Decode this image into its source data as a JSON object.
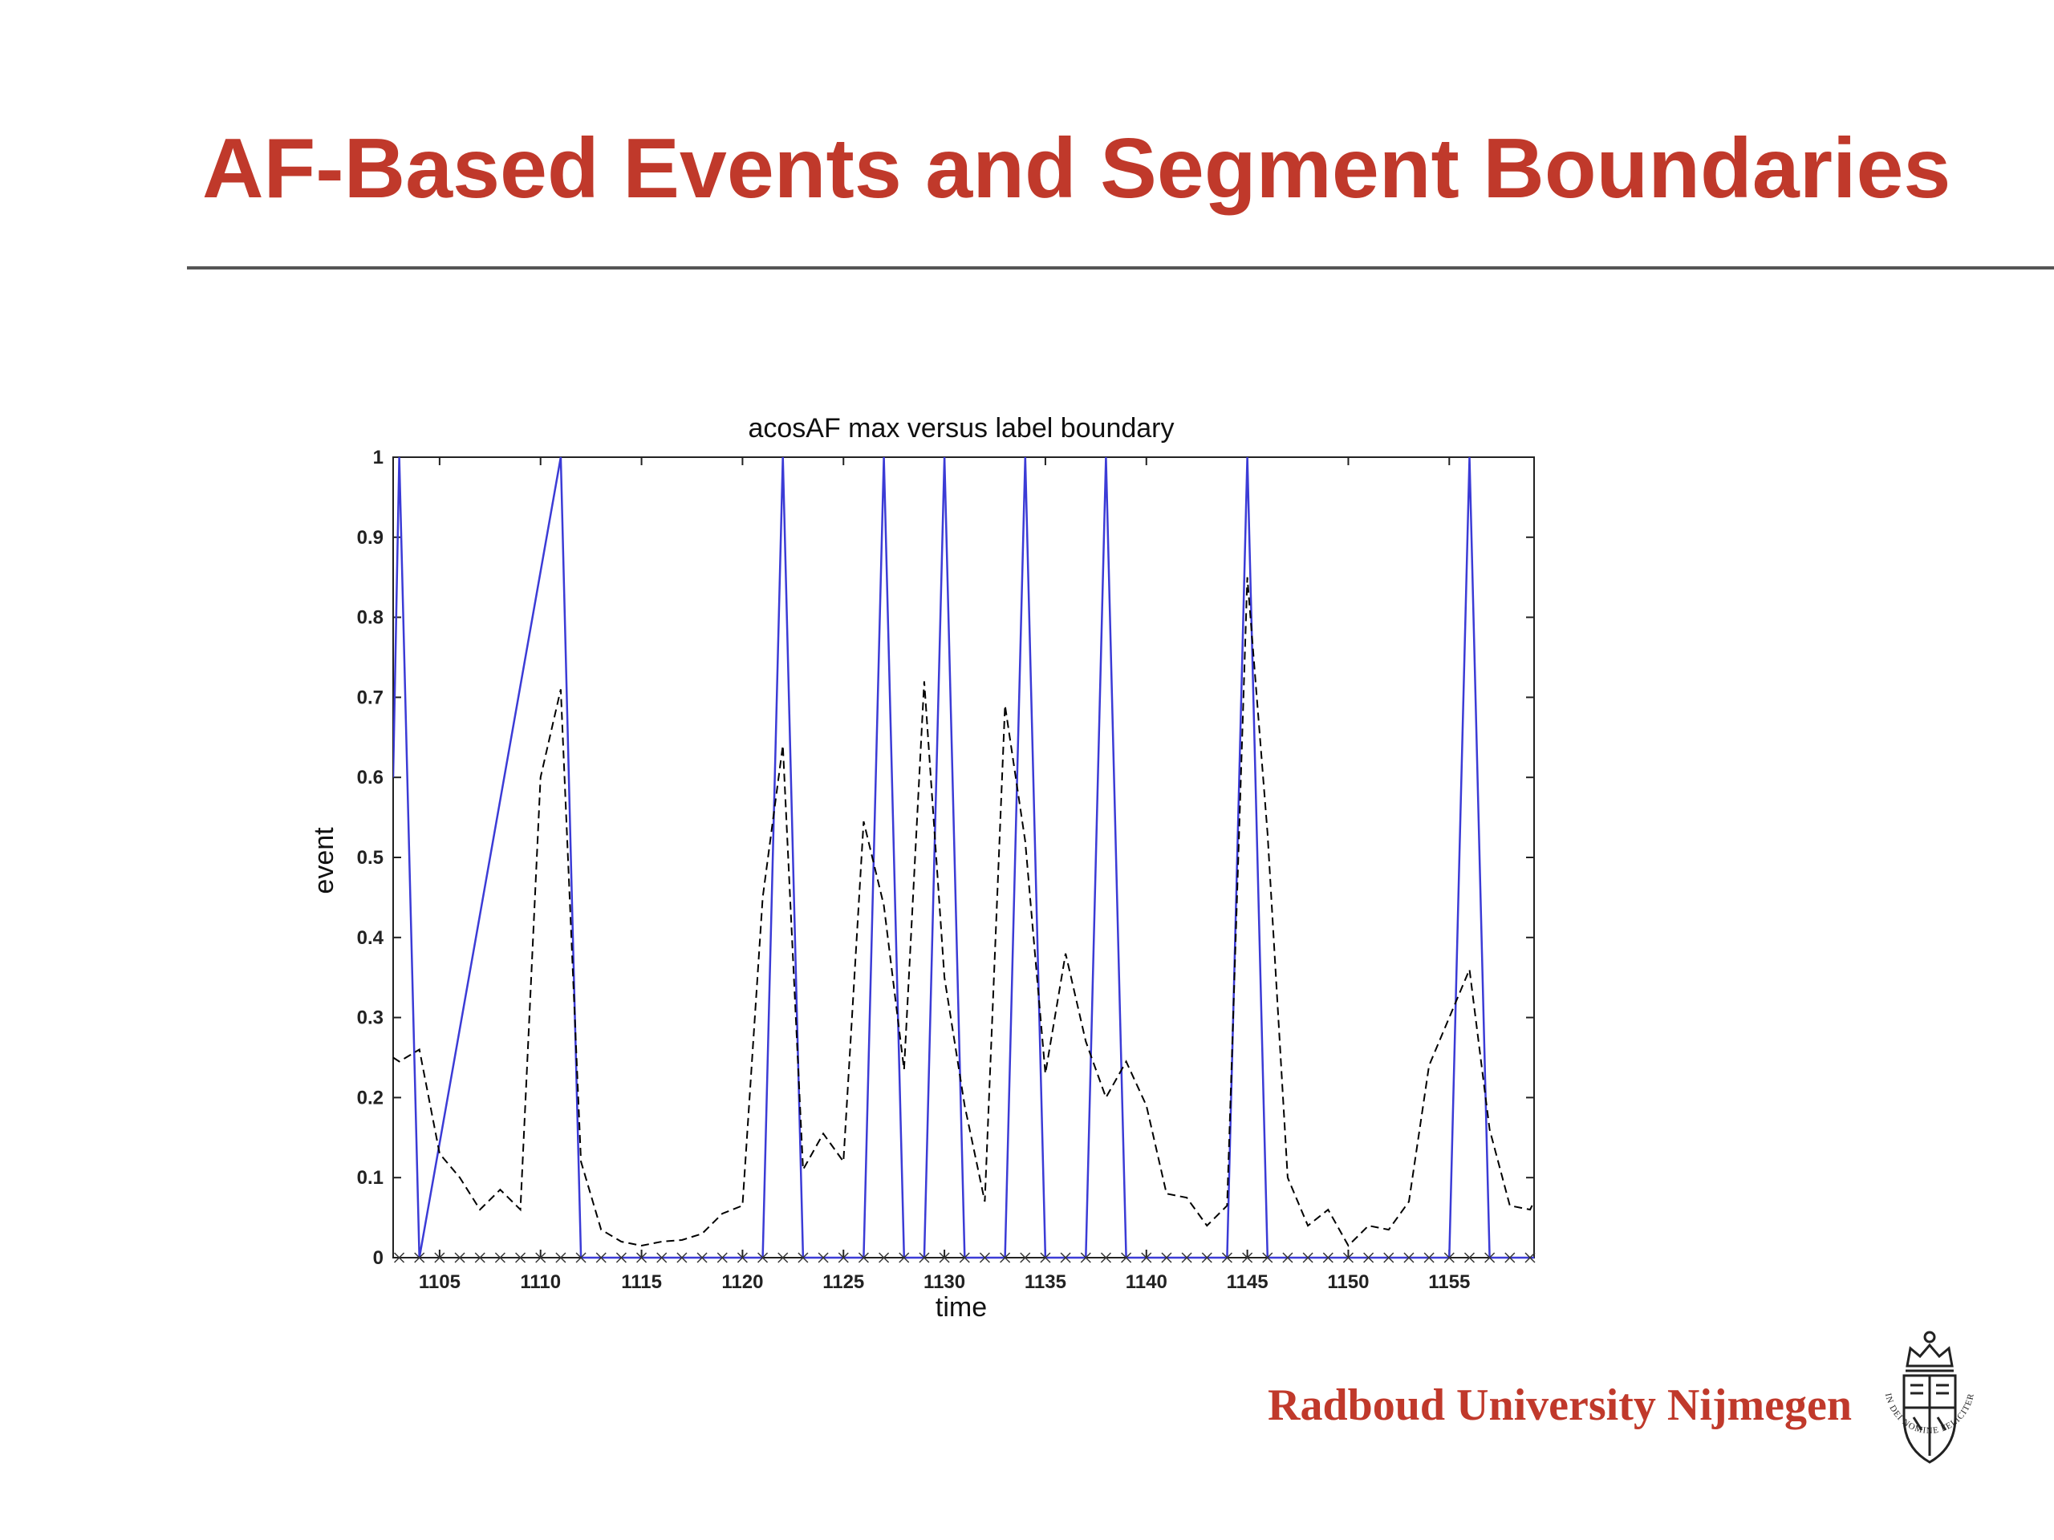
{
  "slide": {
    "title": "AF-Based Events and Segment Boundaries"
  },
  "footer": {
    "university": "Radboud University Nijmegen",
    "seal_text": "IN DEI NOMINE FELICITER"
  },
  "colors": {
    "title": "#c0392b",
    "event_line": "#3b3bd6",
    "acos_line": "#000000"
  },
  "chart_data": {
    "type": "line",
    "title": "acosAF max versus label boundary",
    "xlabel": "time",
    "ylabel": "event",
    "xlim": [
      1102.7,
      1159.2
    ],
    "ylim": [
      0,
      1
    ],
    "x_ticks": [
      1105,
      1110,
      1115,
      1120,
      1125,
      1130,
      1135,
      1140,
      1145,
      1150,
      1155
    ],
    "y_ticks": [
      0,
      0.1,
      0.2,
      0.3,
      0.4,
      0.5,
      0.6,
      0.7,
      0.8,
      0.9,
      1
    ],
    "y_tick_labels": [
      "0",
      "0.1",
      "0.2",
      "0.3",
      "0.4",
      "0.5",
      "0.6",
      "0.7",
      "0.8",
      "0.9",
      "1"
    ],
    "grid": false,
    "series": [
      {
        "style": "solid",
        "color": "#3b3bd6",
        "x": [
          1102.7,
          1103,
          1104,
          1111,
          1112,
          1121,
          1122,
          1123,
          1126,
          1127,
          1128,
          1129,
          1130,
          1131,
          1133,
          1134,
          1135,
          1137,
          1138,
          1139,
          1144,
          1145,
          1146,
          1155,
          1156,
          1157,
          1159.2
        ],
        "y": [
          0.6,
          1,
          0,
          1,
          0,
          0,
          1,
          0,
          0,
          1,
          0,
          0,
          1,
          0,
          0,
          1,
          0,
          0,
          1,
          0,
          0,
          1,
          0,
          0,
          1,
          0,
          0
        ]
      },
      {
        "style": "dashed",
        "color": "#000000",
        "x": [
          1102.7,
          1103,
          1104,
          1105,
          1106,
          1107,
          1108,
          1109,
          1110,
          1111,
          1112,
          1113,
          1114,
          1115,
          1116,
          1117,
          1118,
          1119,
          1120,
          1121,
          1122,
          1123,
          1124,
          1125,
          1126,
          1127,
          1128,
          1129,
          1130,
          1131,
          1132,
          1133,
          1134,
          1135,
          1136,
          1137,
          1138,
          1139,
          1140,
          1141,
          1142,
          1143,
          1144,
          1145,
          1146,
          1147,
          1148,
          1149,
          1150,
          1151,
          1152,
          1153,
          1154,
          1155,
          1156,
          1157,
          1158,
          1159,
          1159.2
        ],
        "y": [
          0.25,
          0.245,
          0.26,
          0.13,
          0.1,
          0.06,
          0.085,
          0.06,
          0.6,
          0.71,
          0.12,
          0.035,
          0.02,
          0.015,
          0.02,
          0.022,
          0.03,
          0.055,
          0.065,
          0.45,
          0.64,
          0.11,
          0.155,
          0.12,
          0.545,
          0.44,
          0.235,
          0.72,
          0.35,
          0.19,
          0.07,
          0.69,
          0.52,
          0.23,
          0.38,
          0.27,
          0.2,
          0.245,
          0.19,
          0.08,
          0.075,
          0.04,
          0.065,
          0.85,
          0.53,
          0.1,
          0.04,
          0.06,
          0.015,
          0.04,
          0.035,
          0.07,
          0.24,
          0.3,
          0.36,
          0.16,
          0.065,
          0.06,
          0.07
        ]
      }
    ],
    "markers": {
      "symbol": "x",
      "y": 0,
      "x": [
        1103,
        1104,
        1105,
        1106,
        1107,
        1108,
        1109,
        1110,
        1111,
        1112,
        1113,
        1114,
        1115,
        1116,
        1117,
        1118,
        1119,
        1120,
        1121,
        1122,
        1123,
        1124,
        1125,
        1126,
        1127,
        1128,
        1129,
        1130,
        1131,
        1132,
        1133,
        1134,
        1135,
        1136,
        1137,
        1138,
        1139,
        1140,
        1141,
        1142,
        1143,
        1144,
        1145,
        1146,
        1147,
        1148,
        1149,
        1150,
        1151,
        1152,
        1153,
        1154,
        1155,
        1156,
        1157,
        1158,
        1159
      ]
    }
  }
}
